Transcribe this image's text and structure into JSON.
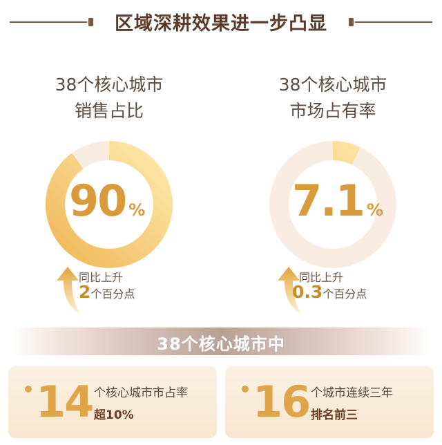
{
  "title": "区域深耕效果进一步凸显",
  "metrics": [
    {
      "label_line1": "38个核心城市",
      "label_line2": "销售占比",
      "value": "90",
      "unit": "%",
      "ring_fraction": 0.9,
      "yoy_label": "同比上升",
      "yoy_value": "2",
      "yoy_unit": "个百分点"
    },
    {
      "label_line1": "38个核心城市",
      "label_line2": "市场占有率",
      "value": "7.1",
      "unit": "%",
      "ring_fraction": 0.071,
      "yoy_label": "同比上升",
      "yoy_value": "0.3",
      "yoy_unit": "个百分点"
    }
  ],
  "banner": "38个核心城市中",
  "cards": [
    {
      "number": "14",
      "line1": "个核心城市市占率",
      "line2": "超10%"
    },
    {
      "number": "16",
      "line1": "个城市连续三年",
      "line2": "排名前三"
    }
  ],
  "colors": {
    "accent": "#e0a548",
    "title": "#5b3a29",
    "ring_track": "#f8ede0"
  }
}
